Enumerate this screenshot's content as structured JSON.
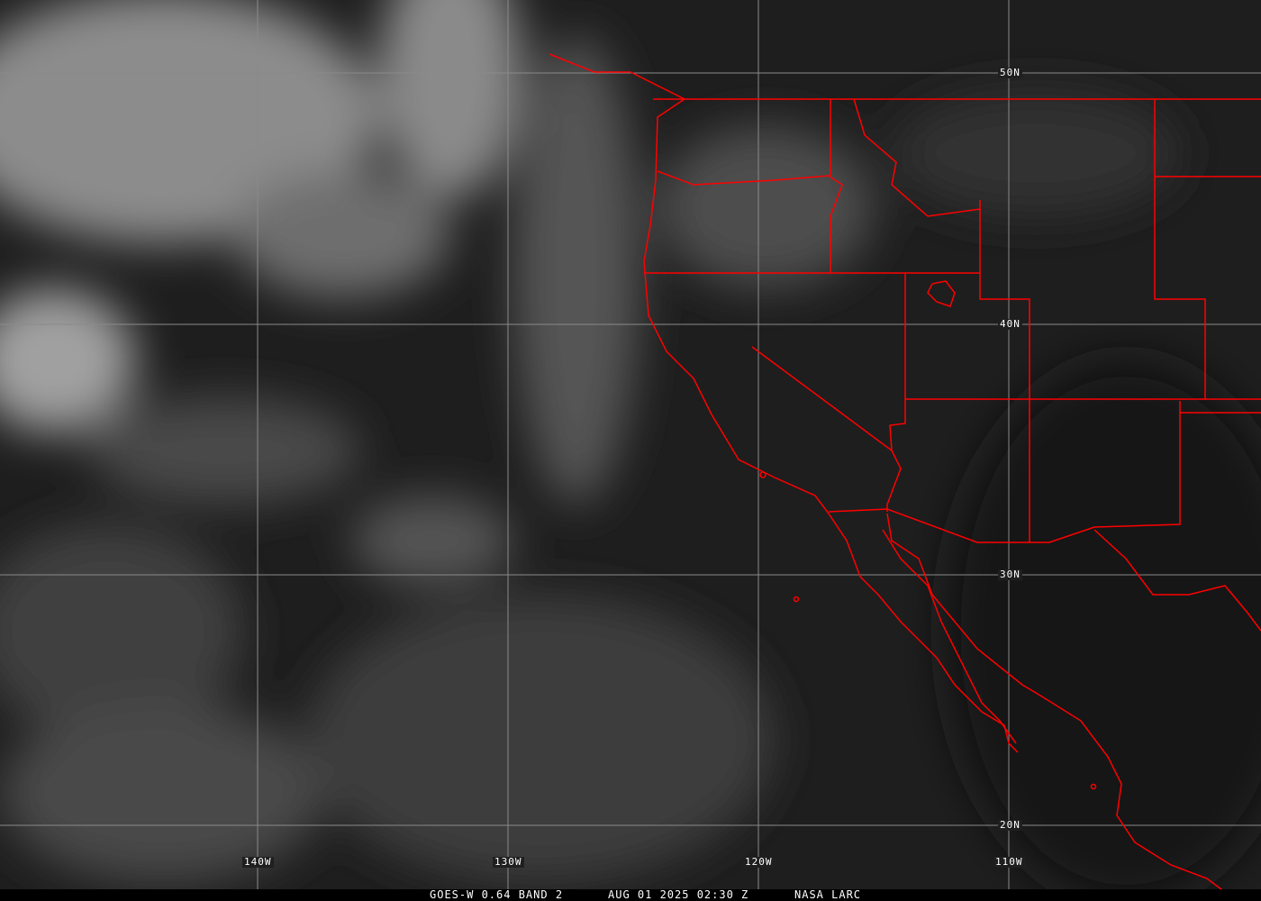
{
  "image": {
    "satellite_label": "GOES-W 0.64 BAND 2",
    "timestamp": "AUG 01 2025 02:30 Z",
    "credit": "NASA LARC"
  },
  "grid": {
    "longitudes": [
      "140W",
      "130W",
      "120W",
      "110W"
    ],
    "latitudes": [
      "50N",
      "40N",
      "30N",
      "20N"
    ]
  },
  "colors": {
    "borders": "#ff0000",
    "grid": "#8a8a8a",
    "background": "#1e1e1e"
  }
}
